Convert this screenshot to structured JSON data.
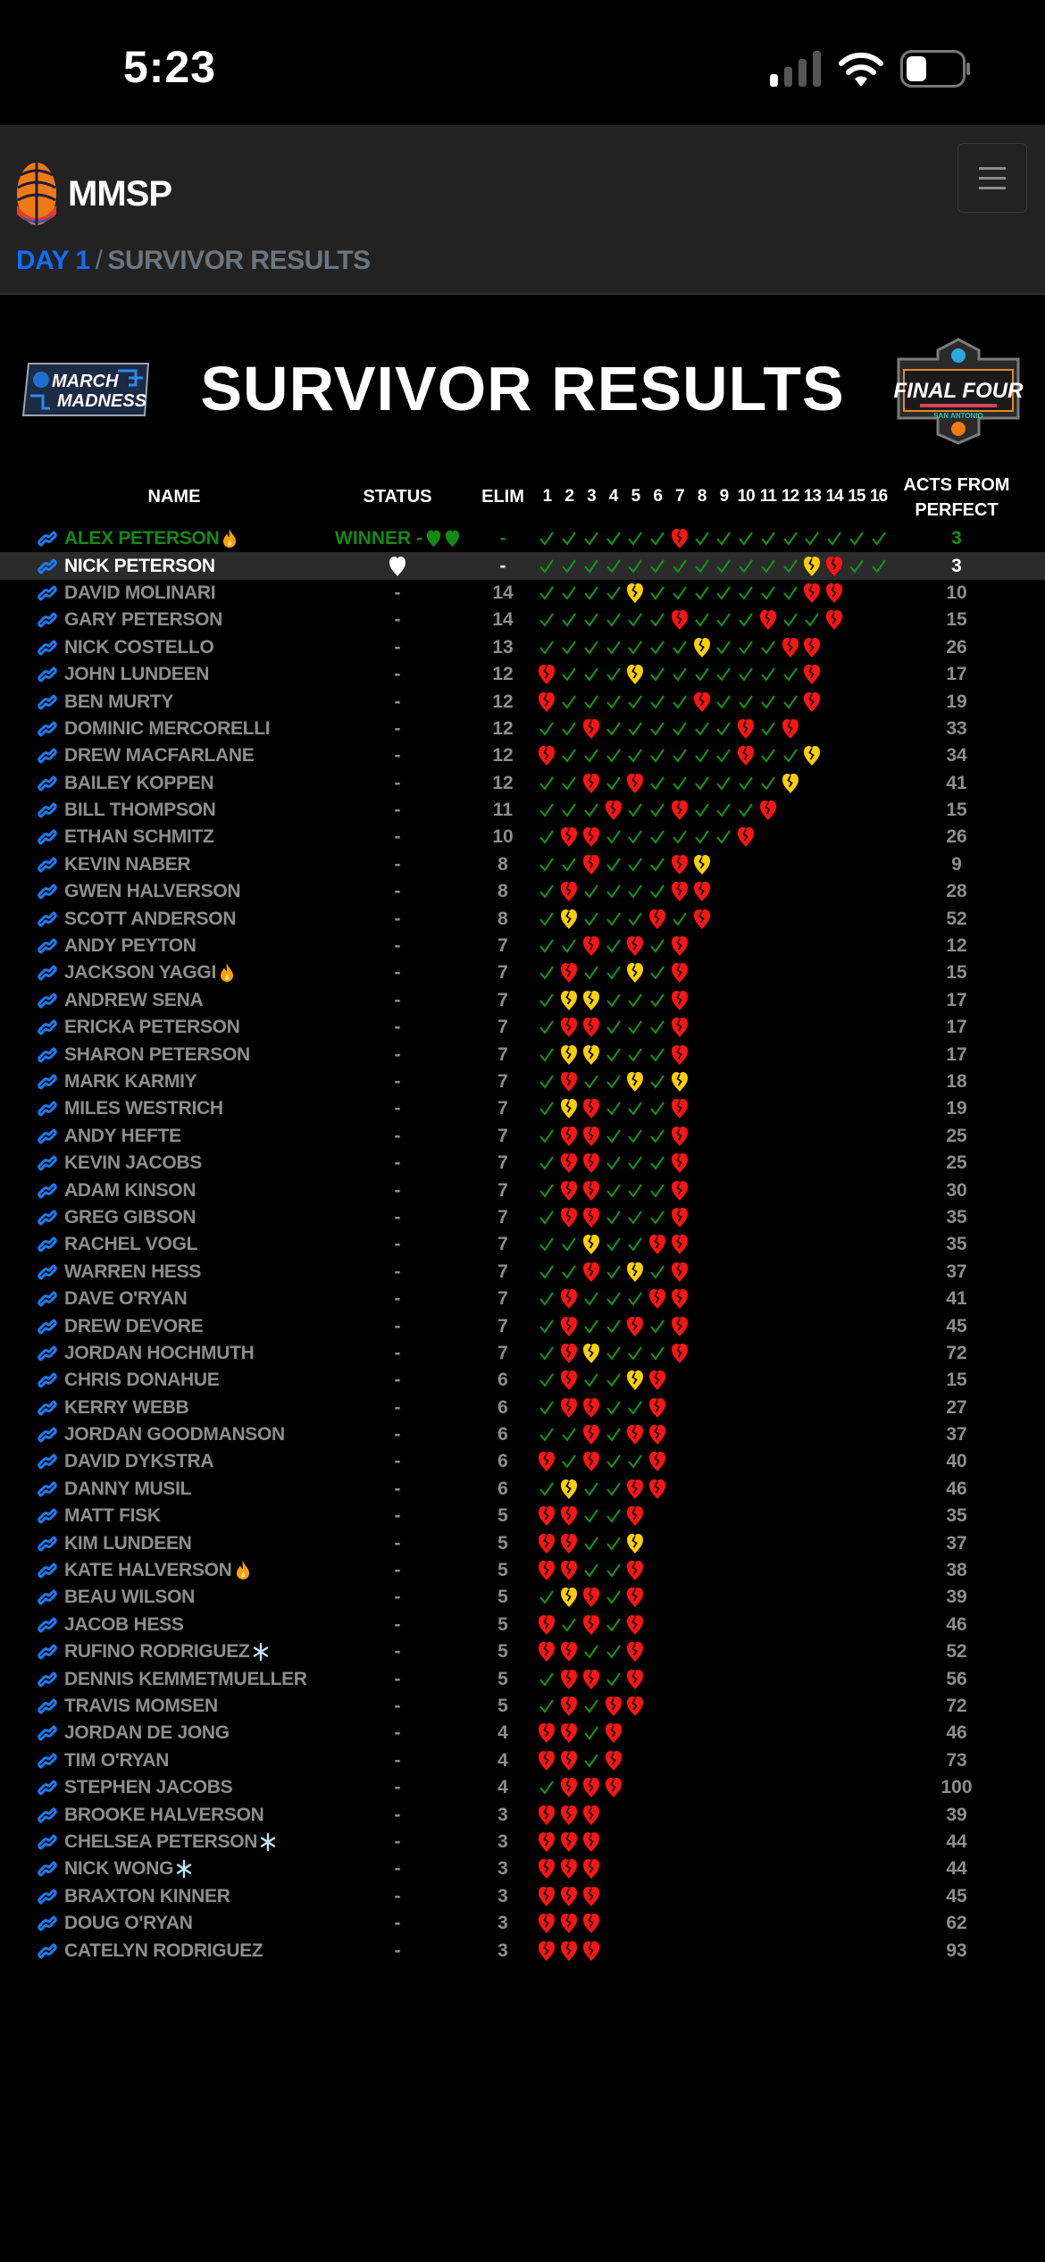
{
  "status_bar": {
    "time": "5:23"
  },
  "navbar": {
    "brand": "MMSP",
    "menu_icon": "hamburger-icon"
  },
  "breadcrumb": {
    "day": "DAY 1",
    "separator": "/",
    "current": "SURVIVOR RESULTS"
  },
  "page": {
    "title": "SURVIVOR RESULTS",
    "logo_left_text": "MARCH MADNESS",
    "logo_right_text": "FINAL FOUR SAN ANTONIO"
  },
  "table": {
    "headers": {
      "name": "NAME",
      "status": "STATUS",
      "elim": "ELIM",
      "acts_line1": "ACTS FROM",
      "acts_line2": "PERFECT"
    },
    "day_columns": [
      "1",
      "2",
      "3",
      "4",
      "5",
      "6",
      "7",
      "8",
      "9",
      "10",
      "11",
      "12",
      "13",
      "14",
      "15",
      "16"
    ],
    "pick_legend": {
      "c": "check",
      "r": "red-broken-heart",
      "y": "yellow-broken-heart"
    },
    "colors": {
      "check": "#129a12",
      "red": "#ff1414",
      "yellow": "#ffd000",
      "link": "#1a7cf5",
      "winner": "#138a13",
      "flame": "#ff9f0a",
      "snow": "#bfe6f7"
    },
    "rows": [
      {
        "name": "ALEX PETERSON",
        "badge": "flame",
        "status": "WINNER -",
        "status_hearts": 2,
        "elim": "-",
        "picks": "ccccccrccccccccc",
        "acts": "3",
        "winner": true
      },
      {
        "name": "NICK PETERSON",
        "status_heart": "white",
        "status": "",
        "elim": "-",
        "picks": "ccccccccccccyrcc",
        "acts": "3",
        "highlight": true
      },
      {
        "name": "DAVID MOLINARI",
        "status": "-",
        "elim": "14",
        "picks": "ccccycccccccrr",
        "acts": "10"
      },
      {
        "name": "GARY PETERSON",
        "status": "-",
        "elim": "14",
        "picks": "ccccccrcccrccr",
        "acts": "15"
      },
      {
        "name": "NICK COSTELLO",
        "status": "-",
        "elim": "13",
        "picks": "cccccccycccrr",
        "acts": "26"
      },
      {
        "name": "JOHN LUNDEEN",
        "status": "-",
        "elim": "12",
        "picks": "rcccycccccccr",
        "acts": "17"
      },
      {
        "name": "BEN MURTY",
        "status": "-",
        "elim": "12",
        "picks": "rccccccrccccr",
        "acts": "19"
      },
      {
        "name": "DOMINIC MERCORELLI",
        "status": "-",
        "elim": "12",
        "picks": "ccrccccccrcr",
        "acts": "33"
      },
      {
        "name": "DREW MACFARLANE",
        "status": "-",
        "elim": "12",
        "picks": "rccccccccrccy",
        "acts": "34"
      },
      {
        "name": "BAILEY KOPPEN",
        "status": "-",
        "elim": "12",
        "picks": "ccrcrccccccy",
        "acts": "41"
      },
      {
        "name": "BILL THOMPSON",
        "status": "-",
        "elim": "11",
        "picks": "cccrccrcccr",
        "acts": "15"
      },
      {
        "name": "ETHAN SCHMITZ",
        "status": "-",
        "elim": "10",
        "picks": "crrccccccr",
        "acts": "26"
      },
      {
        "name": "KEVIN NABER",
        "status": "-",
        "elim": "8",
        "picks": "ccrcccry",
        "acts": "9"
      },
      {
        "name": "GWEN HALVERSON",
        "status": "-",
        "elim": "8",
        "picks": "crccccrr",
        "acts": "28"
      },
      {
        "name": "SCOTT ANDERSON",
        "status": "-",
        "elim": "8",
        "picks": "cycccrcr",
        "acts": "52"
      },
      {
        "name": "ANDY PEYTON",
        "status": "-",
        "elim": "7",
        "picks": "ccrcrcr",
        "acts": "12"
      },
      {
        "name": "JACKSON YAGGI",
        "badge": "flame",
        "status": "-",
        "elim": "7",
        "picks": "crccycr",
        "acts": "15"
      },
      {
        "name": "ANDREW SENA",
        "status": "-",
        "elim": "7",
        "picks": "cyycccr",
        "acts": "17"
      },
      {
        "name": "ERICKA PETERSON",
        "status": "-",
        "elim": "7",
        "picks": "crrcccr",
        "acts": "17"
      },
      {
        "name": "SHARON PETERSON",
        "status": "-",
        "elim": "7",
        "picks": "cyycccr",
        "acts": "17"
      },
      {
        "name": "MARK KARMIY",
        "status": "-",
        "elim": "7",
        "picks": "crccycy",
        "acts": "18"
      },
      {
        "name": "MILES WESTRICH",
        "status": "-",
        "elim": "7",
        "picks": "cyrcccr",
        "acts": "19"
      },
      {
        "name": "ANDY HEFTE",
        "status": "-",
        "elim": "7",
        "picks": "crrcccr",
        "acts": "25"
      },
      {
        "name": "KEVIN JACOBS",
        "status": "-",
        "elim": "7",
        "picks": "crrcccr",
        "acts": "25"
      },
      {
        "name": "ADAM KINSON",
        "status": "-",
        "elim": "7",
        "picks": "crrcccr",
        "acts": "30"
      },
      {
        "name": "GREG GIBSON",
        "status": "-",
        "elim": "7",
        "picks": "crrcccr",
        "acts": "35"
      },
      {
        "name": "RACHEL VOGL",
        "status": "-",
        "elim": "7",
        "picks": "ccyccrr",
        "acts": "35"
      },
      {
        "name": "WARREN HESS",
        "status": "-",
        "elim": "7",
        "picks": "ccrcycr",
        "acts": "37"
      },
      {
        "name": "DAVE O'RYAN",
        "status": "-",
        "elim": "7",
        "picks": "crcccrr",
        "acts": "41"
      },
      {
        "name": "DREW DEVORE",
        "status": "-",
        "elim": "7",
        "picks": "crccrcr",
        "acts": "45"
      },
      {
        "name": "JORDAN HOCHMUTH",
        "status": "-",
        "elim": "7",
        "picks": "crycccr",
        "acts": "72"
      },
      {
        "name": "CHRIS DONAHUE",
        "status": "-",
        "elim": "6",
        "picks": "crccyr",
        "acts": "15"
      },
      {
        "name": "KERRY WEBB",
        "status": "-",
        "elim": "6",
        "picks": "crrccr",
        "acts": "27"
      },
      {
        "name": "JORDAN GOODMANSON",
        "status": "-",
        "elim": "6",
        "picks": "ccrcrr",
        "acts": "37"
      },
      {
        "name": "DAVID DYKSTRA",
        "status": "-",
        "elim": "6",
        "picks": "rcrccr",
        "acts": "40"
      },
      {
        "name": "DANNY MUSIL",
        "status": "-",
        "elim": "6",
        "picks": "cyccrr",
        "acts": "46"
      },
      {
        "name": "MATT FISK",
        "status": "-",
        "elim": "5",
        "picks": "rrccr",
        "acts": "35"
      },
      {
        "name": "KIM LUNDEEN",
        "status": "-",
        "elim": "5",
        "picks": "rrccy",
        "acts": "37"
      },
      {
        "name": "KATE HALVERSON",
        "badge": "flame",
        "status": "-",
        "elim": "5",
        "picks": "rrccr",
        "acts": "38"
      },
      {
        "name": "BEAU WILSON",
        "status": "-",
        "elim": "5",
        "picks": "cyrcr",
        "acts": "39"
      },
      {
        "name": "JACOB HESS",
        "status": "-",
        "elim": "5",
        "picks": "rcrcr",
        "acts": "46"
      },
      {
        "name": "RUFINO RODRIGUEZ",
        "badge": "snowflake",
        "status": "-",
        "elim": "5",
        "picks": "rrccr",
        "acts": "52"
      },
      {
        "name": "DENNIS KEMMETMUELLER",
        "status": "-",
        "elim": "5",
        "picks": "crrcr",
        "acts": "56"
      },
      {
        "name": "TRAVIS MOMSEN",
        "status": "-",
        "elim": "5",
        "picks": "crcrr",
        "acts": "72"
      },
      {
        "name": "JORDAN DE JONG",
        "status": "-",
        "elim": "4",
        "picks": "rrcr",
        "acts": "46"
      },
      {
        "name": "TIM O'RYAN",
        "status": "-",
        "elim": "4",
        "picks": "rrcr",
        "acts": "73"
      },
      {
        "name": "STEPHEN JACOBS",
        "status": "-",
        "elim": "4",
        "picks": "crrr",
        "acts": "100"
      },
      {
        "name": "BROOKE HALVERSON",
        "status": "-",
        "elim": "3",
        "picks": "rrr",
        "acts": "39"
      },
      {
        "name": "CHELSEA PETERSON",
        "badge": "snowflake",
        "status": "-",
        "elim": "3",
        "picks": "rrr",
        "acts": "44"
      },
      {
        "name": "NICK WONG",
        "badge": "snowflake",
        "status": "-",
        "elim": "3",
        "picks": "rrr",
        "acts": "44"
      },
      {
        "name": "BRAXTON KINNER",
        "status": "-",
        "elim": "3",
        "picks": "rrr",
        "acts": "45"
      },
      {
        "name": "DOUG O'RYAN",
        "status": "-",
        "elim": "3",
        "picks": "rrr",
        "acts": "62"
      },
      {
        "name": "CATELYN RODRIGUEZ",
        "status": "-",
        "elim": "3",
        "picks": "rrr",
        "acts": "93"
      }
    ]
  }
}
